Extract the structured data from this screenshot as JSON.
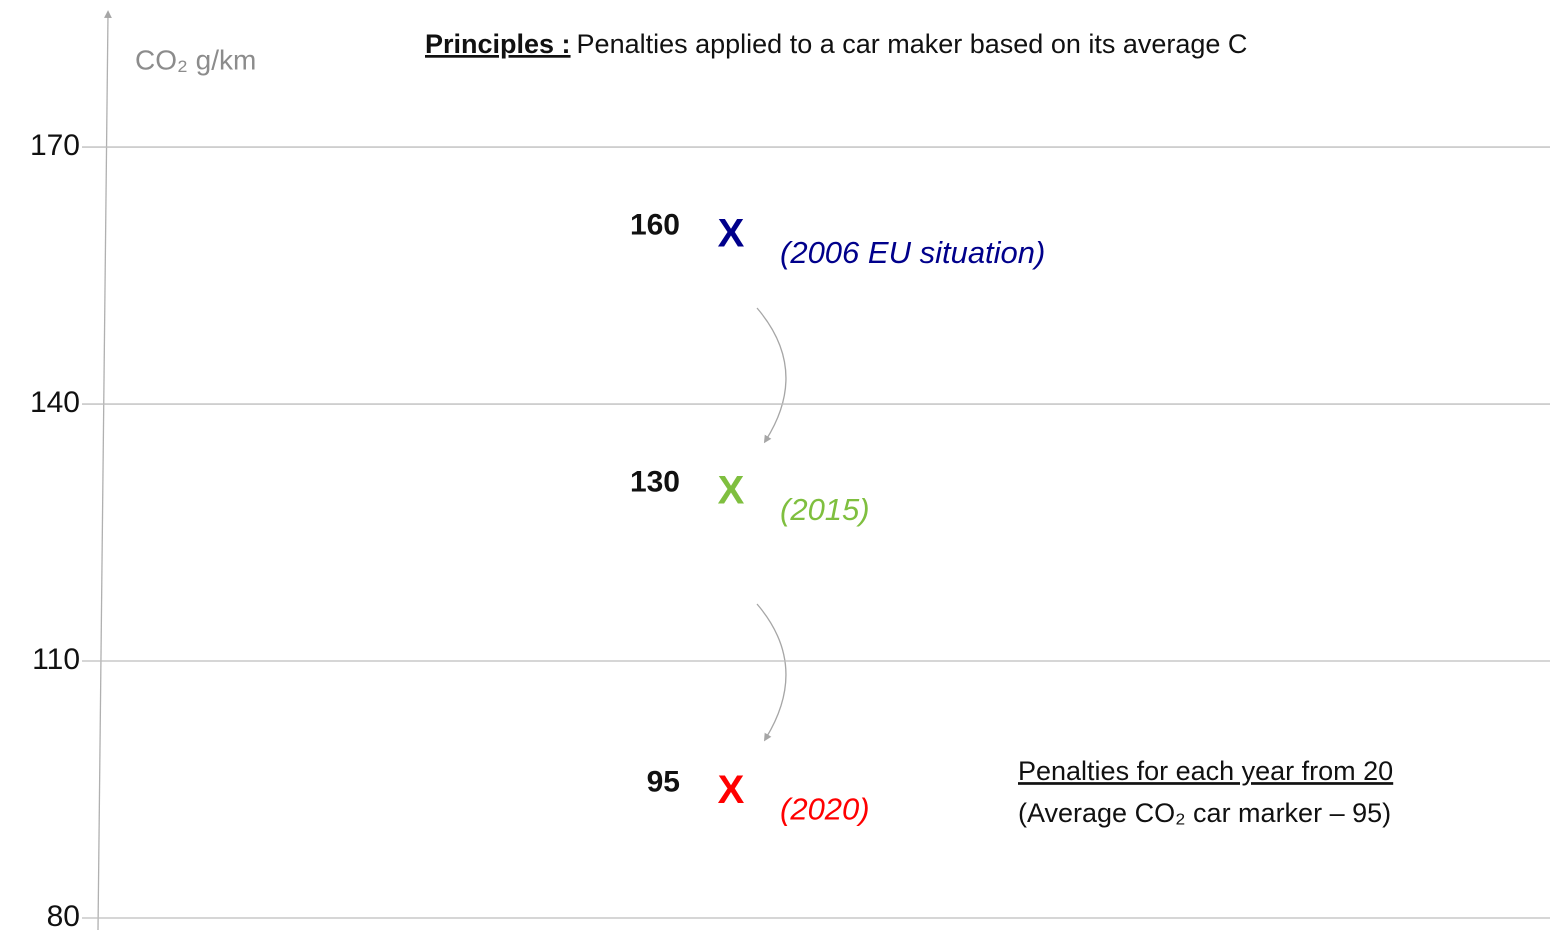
{
  "chart_data": {
    "type": "point",
    "title_prefix": "Principles :",
    "title": "Penalties applied to a car maker based on its average C",
    "ylabel": "CO₂  g/km",
    "ylim": [
      80,
      186
    ],
    "yticks": [
      80,
      110,
      140,
      170
    ],
    "grid": true,
    "marker": "X",
    "values": [
      160,
      130,
      95
    ],
    "labels": [
      "(2006 EU situation)",
      "(2015)",
      "(2020)"
    ],
    "colors": [
      "#00008b",
      "#7fbf3f",
      "#ff0000"
    ],
    "annotations": [
      "Penalties for each year from 20",
      "(Average  CO₂ car marker – 95)"
    ]
  }
}
